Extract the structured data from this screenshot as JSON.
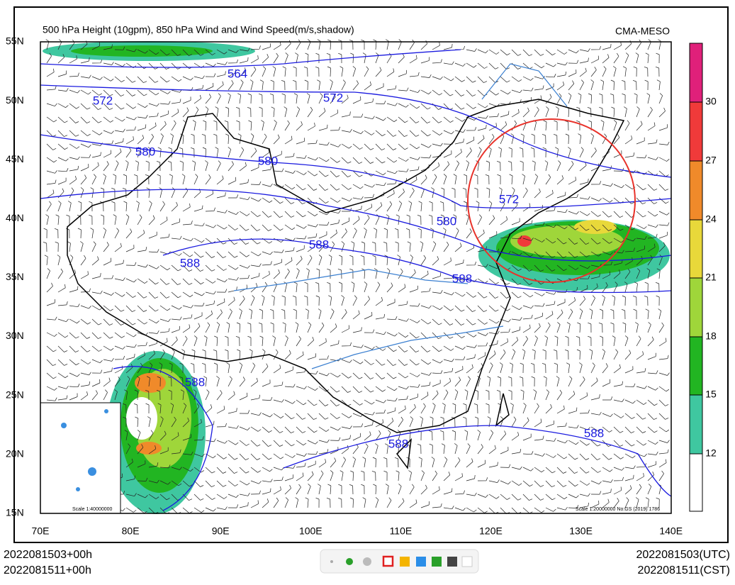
{
  "title": "500 hPa Height (10gpm), 850 hPa Wind and Wind Speed(m/s,shadow)",
  "source": "CMA-MESO",
  "lat_labels": [
    "55N",
    "50N",
    "45N",
    "40N",
    "35N",
    "30N",
    "25N",
    "20N",
    "15N"
  ],
  "lon_labels": [
    "70E",
    "80E",
    "90E",
    "100E",
    "110E",
    "120E",
    "130E",
    "140E"
  ],
  "colorbar_labels": [
    12,
    15,
    18,
    21,
    24,
    27,
    30
  ],
  "contour_labels": [
    "564",
    "572",
    "572",
    "580",
    "580",
    "588",
    "588",
    "588",
    "588",
    "588",
    "588",
    "572",
    "580"
  ],
  "inset_scale": "Scale 1:40000000",
  "map_scale": "Scale 1:20000000 No:GS (2019) 1786",
  "time_left": [
    "2022081503+00h",
    "2022081511+00h"
  ],
  "time_right": [
    "2022081503(UTC)",
    "2022081511(CST)"
  ]
}
